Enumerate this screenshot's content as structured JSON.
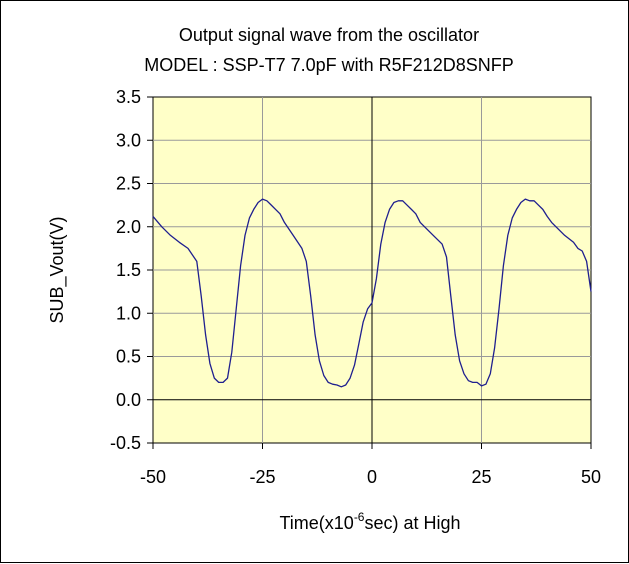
{
  "chart_data": {
    "type": "line",
    "title_line1": "Output signal wave from the oscillator",
    "title_line2": "MODEL : SSP-T7 7.0pF with R5F212D8SNFP",
    "xlabel_pre": "Time(x10",
    "xlabel_sup": "-6",
    "xlabel_post": "sec)  at  High",
    "ylabel": "SUB_Vout(V)",
    "xlim": [
      -50,
      50
    ],
    "ylim": [
      -0.5,
      3.5
    ],
    "x_ticks": [
      "-50",
      "-25",
      "0",
      "25",
      "50"
    ],
    "y_ticks": [
      "3.5",
      "3.0",
      "2.5",
      "2.0",
      "1.5",
      "1.0",
      "0.5",
      "0.0",
      "-0.5"
    ],
    "grid": true,
    "legend": "none",
    "colors": {
      "plot_bg": "#ffffc8",
      "line": "#1f1f8f",
      "grid": "#9a9a9a",
      "axis": "#000000"
    },
    "series": [
      {
        "x": [
          -50,
          -48,
          -46,
          -44,
          -42,
          -40,
          -39,
          -38,
          -37,
          -36,
          -35,
          -34,
          -33,
          -32,
          -31,
          -30,
          -29,
          -28,
          -27,
          -26,
          -25,
          -24,
          -23,
          -22,
          -21,
          -20,
          -18,
          -16,
          -15,
          -14,
          -13,
          -12,
          -11,
          -10,
          -9,
          -8,
          -7,
          -6,
          -5,
          -4,
          -3,
          -2,
          -1,
          0,
          1,
          2,
          3,
          4,
          5,
          6,
          7,
          8,
          9,
          10,
          11,
          12,
          14,
          16,
          17,
          18,
          19,
          20,
          21,
          22,
          23,
          24,
          25,
          26,
          27,
          28,
          29,
          30,
          31,
          32,
          33,
          34,
          35,
          36,
          37,
          38,
          39,
          40,
          41,
          42,
          44,
          46,
          47,
          48,
          49,
          50
        ],
        "y": [
          2.12,
          2.0,
          1.9,
          1.82,
          1.75,
          1.6,
          1.2,
          0.75,
          0.42,
          0.25,
          0.2,
          0.2,
          0.25,
          0.55,
          1.05,
          1.55,
          1.9,
          2.1,
          2.2,
          2.28,
          2.32,
          2.3,
          2.25,
          2.2,
          2.15,
          2.05,
          1.9,
          1.75,
          1.6,
          1.2,
          0.75,
          0.45,
          0.28,
          0.2,
          0.18,
          0.17,
          0.15,
          0.17,
          0.25,
          0.4,
          0.65,
          0.9,
          1.05,
          1.12,
          1.4,
          1.8,
          2.05,
          2.2,
          2.28,
          2.3,
          2.3,
          2.25,
          2.2,
          2.15,
          2.05,
          2.0,
          1.9,
          1.8,
          1.65,
          1.2,
          0.75,
          0.45,
          0.3,
          0.22,
          0.2,
          0.2,
          0.16,
          0.18,
          0.3,
          0.6,
          1.05,
          1.55,
          1.9,
          2.1,
          2.2,
          2.28,
          2.32,
          2.3,
          2.3,
          2.25,
          2.2,
          2.12,
          2.05,
          2.0,
          1.9,
          1.82,
          1.75,
          1.72,
          1.6,
          1.25
        ]
      }
    ]
  }
}
